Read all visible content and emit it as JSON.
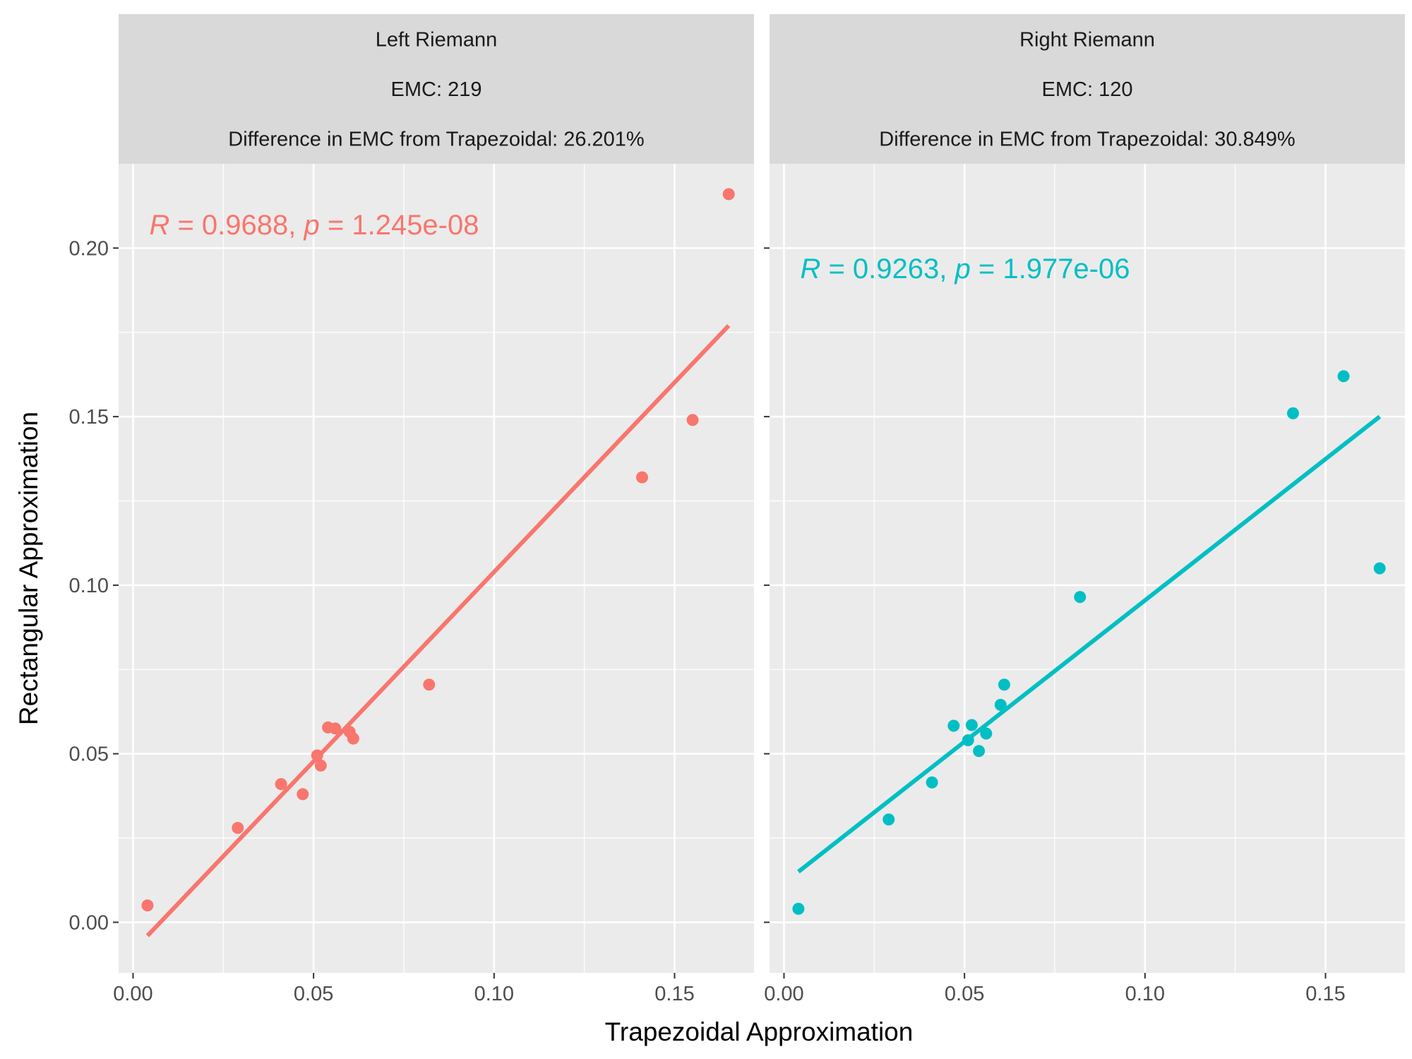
{
  "chart_data": {
    "type": "scatter",
    "xlabel": "Trapezoidal Approximation",
    "ylabel": "Rectangular Approximation",
    "xlim": [
      -0.004,
      0.172
    ],
    "ylim": [
      -0.015,
      0.225
    ],
    "x_ticks": [
      0.0,
      0.05,
      0.1,
      0.15
    ],
    "x_tick_labels": [
      "0.00",
      "0.05",
      "0.10",
      "0.15"
    ],
    "y_ticks": [
      0.0,
      0.05,
      0.1,
      0.15,
      0.2
    ],
    "y_tick_labels": [
      "0.00",
      "0.05",
      "0.10",
      "0.15",
      "0.20"
    ],
    "grid": true,
    "panels": [
      {
        "strip": [
          "Left Riemann",
          "EMC: 219",
          "Difference in EMC from Trapezoidal: 26.201%"
        ],
        "color": "#F8766D",
        "annotation": {
          "R_label": "R",
          "R_value": " = 0.9688, ",
          "p_label": "p",
          "p_value": " = 1.245e-08"
        },
        "annotation_pos": [
          0.0045,
          0.207
        ],
        "points": [
          [
            0.004,
            0.005
          ],
          [
            0.029,
            0.028
          ],
          [
            0.041,
            0.041
          ],
          [
            0.047,
            0.038
          ],
          [
            0.051,
            0.0495
          ],
          [
            0.052,
            0.0465
          ],
          [
            0.054,
            0.0578
          ],
          [
            0.056,
            0.0575
          ],
          [
            0.06,
            0.0565
          ],
          [
            0.061,
            0.0545
          ],
          [
            0.082,
            0.0705
          ],
          [
            0.141,
            0.132
          ],
          [
            0.155,
            0.149
          ],
          [
            0.165,
            0.216
          ]
        ],
        "fit": [
          [
            0.004,
            -0.004
          ],
          [
            0.165,
            0.177
          ]
        ]
      },
      {
        "strip": [
          "Right Riemann",
          "EMC: 120",
          "Difference in EMC from Trapezoidal: 30.849%"
        ],
        "color": "#00BFC4",
        "annotation": {
          "R_label": "R",
          "R_value": " = 0.9263, ",
          "p_label": "p",
          "p_value": " = 1.977e-06"
        },
        "annotation_pos": [
          0.0045,
          0.194
        ],
        "points": [
          [
            0.004,
            0.004
          ],
          [
            0.029,
            0.0305
          ],
          [
            0.041,
            0.0415
          ],
          [
            0.047,
            0.0583
          ],
          [
            0.051,
            0.054
          ],
          [
            0.052,
            0.0585
          ],
          [
            0.054,
            0.0508
          ],
          [
            0.056,
            0.056
          ],
          [
            0.06,
            0.0645
          ],
          [
            0.061,
            0.0705
          ],
          [
            0.082,
            0.0965
          ],
          [
            0.141,
            0.151
          ],
          [
            0.155,
            0.162
          ],
          [
            0.165,
            0.105
          ]
        ],
        "fit": [
          [
            0.004,
            0.015
          ],
          [
            0.165,
            0.15
          ]
        ]
      }
    ]
  }
}
